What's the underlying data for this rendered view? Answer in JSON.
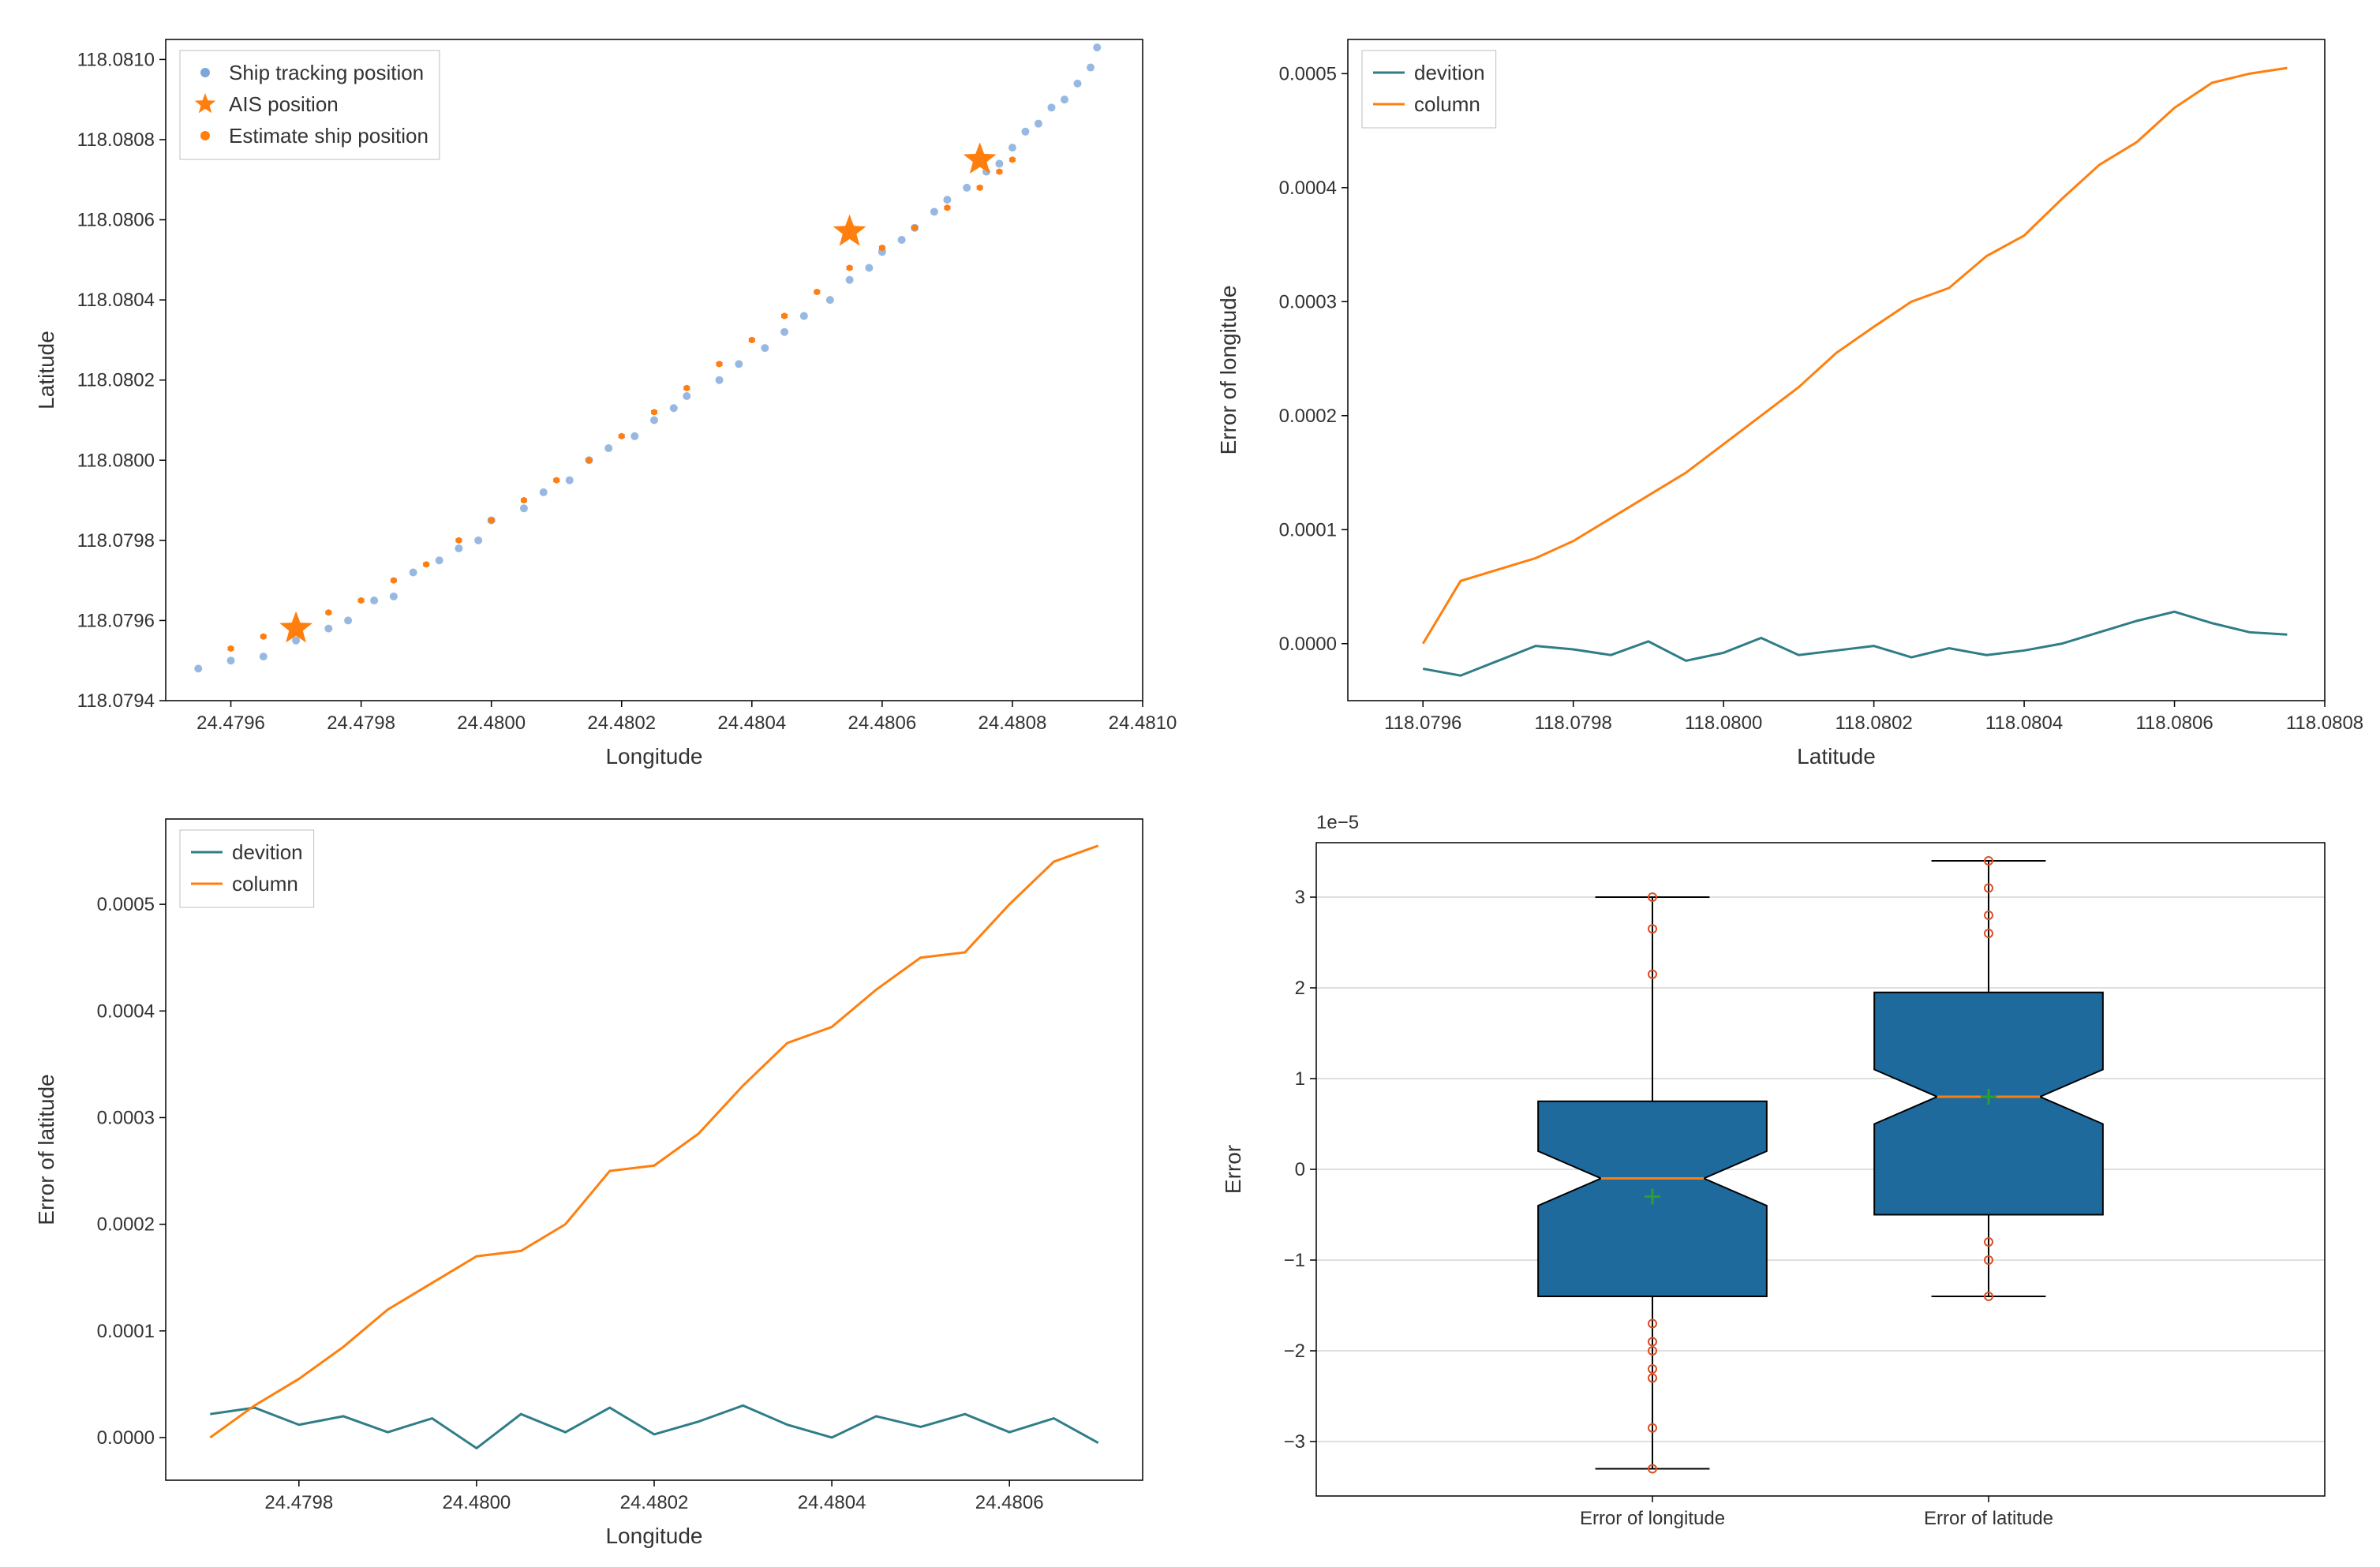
{
  "colors": {
    "bg": "#ffffff",
    "text": "#333333",
    "spine": "#000000",
    "grid": "#bfbfbf",
    "track_pt": "#7da7d9",
    "ais_star": "#ff7f0e",
    "est_pt": "#ff7f0e",
    "err_bar": "#d62728",
    "devition": "#2e7d87",
    "column": "#ff7f0e",
    "box_fill": "#1e6a9c",
    "box_median": "#ff7f0e",
    "box_mean": "#2ca02c",
    "box_flier": "#d94e24"
  },
  "font": {
    "family": "sans-serif",
    "label_size": 28,
    "tick_size": 24,
    "legend_size": 26
  },
  "panel_tl": {
    "type": "scatter",
    "xlabel": "Longitude",
    "ylabel": "Latitude",
    "xlim": [
      24.4795,
      24.481
    ],
    "ylim": [
      118.0794,
      118.08105
    ],
    "xticks": [
      24.4796,
      24.4798,
      24.48,
      24.4802,
      24.4804,
      24.4806,
      24.4808,
      24.481
    ],
    "yticks": [
      118.0794,
      118.0796,
      118.0798,
      118.08,
      118.0802,
      118.0804,
      118.0806,
      118.0808,
      118.081
    ],
    "legend": [
      {
        "marker": "dot",
        "color": "#7da7d9",
        "label": "Ship tracking position"
      },
      {
        "marker": "star",
        "color": "#ff7f0e",
        "label": "AIS position"
      },
      {
        "marker": "dot",
        "color": "#ff7f0e",
        "label": "Estimate ship position"
      }
    ],
    "track": [
      [
        24.47955,
        118.07948
      ],
      [
        24.4796,
        118.0795
      ],
      [
        24.47965,
        118.07951
      ],
      [
        24.4797,
        118.07955
      ],
      [
        24.47975,
        118.07958
      ],
      [
        24.47978,
        118.0796
      ],
      [
        24.47982,
        118.07965
      ],
      [
        24.47985,
        118.07966
      ],
      [
        24.47988,
        118.07972
      ],
      [
        24.47992,
        118.07975
      ],
      [
        24.47995,
        118.07978
      ],
      [
        24.47998,
        118.0798
      ],
      [
        24.48,
        118.07985
      ],
      [
        24.48005,
        118.07988
      ],
      [
        24.48008,
        118.07992
      ],
      [
        24.48012,
        118.07995
      ],
      [
        24.48015,
        118.08
      ],
      [
        24.48018,
        118.08003
      ],
      [
        24.48022,
        118.08006
      ],
      [
        24.48025,
        118.0801
      ],
      [
        24.48028,
        118.08013
      ],
      [
        24.4803,
        118.08016
      ],
      [
        24.48035,
        118.0802
      ],
      [
        24.48038,
        118.08024
      ],
      [
        24.48042,
        118.08028
      ],
      [
        24.48045,
        118.08032
      ],
      [
        24.48048,
        118.08036
      ],
      [
        24.48052,
        118.0804
      ],
      [
        24.48055,
        118.08045
      ],
      [
        24.48058,
        118.08048
      ],
      [
        24.4806,
        118.08052
      ],
      [
        24.48063,
        118.08055
      ],
      [
        24.48065,
        118.08058
      ],
      [
        24.48068,
        118.08062
      ],
      [
        24.4807,
        118.08065
      ],
      [
        24.48073,
        118.08068
      ],
      [
        24.48076,
        118.08072
      ],
      [
        24.48078,
        118.08074
      ],
      [
        24.4808,
        118.08078
      ],
      [
        24.48082,
        118.08082
      ],
      [
        24.48084,
        118.08084
      ],
      [
        24.48086,
        118.08088
      ],
      [
        24.48088,
        118.0809
      ],
      [
        24.4809,
        118.08094
      ],
      [
        24.48092,
        118.08098
      ],
      [
        24.48093,
        118.08103
      ]
    ],
    "est": [
      [
        24.4796,
        118.07953
      ],
      [
        24.47965,
        118.07956
      ],
      [
        24.4797,
        118.07958
      ],
      [
        24.47975,
        118.07962
      ],
      [
        24.4798,
        118.07965
      ],
      [
        24.47985,
        118.0797
      ],
      [
        24.4799,
        118.07974
      ],
      [
        24.47995,
        118.0798
      ],
      [
        24.48,
        118.07985
      ],
      [
        24.48005,
        118.0799
      ],
      [
        24.4801,
        118.07995
      ],
      [
        24.48015,
        118.08
      ],
      [
        24.4802,
        118.08006
      ],
      [
        24.48025,
        118.08012
      ],
      [
        24.4803,
        118.08018
      ],
      [
        24.48035,
        118.08024
      ],
      [
        24.4804,
        118.0803
      ],
      [
        24.48045,
        118.08036
      ],
      [
        24.4805,
        118.08042
      ],
      [
        24.48055,
        118.08048
      ],
      [
        24.4806,
        118.08053
      ],
      [
        24.48065,
        118.08058
      ],
      [
        24.4807,
        118.08063
      ],
      [
        24.48075,
        118.08068
      ],
      [
        24.48078,
        118.08072
      ],
      [
        24.4808,
        118.08075
      ]
    ],
    "ais": [
      [
        24.4797,
        118.07958
      ],
      [
        24.48055,
        118.08057
      ],
      [
        24.48075,
        118.08075
      ]
    ],
    "err_h": 3e-06,
    "marker": {
      "track_r": 5,
      "est_r": 4,
      "star_r": 22
    }
  },
  "panel_tr": {
    "type": "line",
    "xlabel": "Latitude",
    "ylabel": "Error of longitude",
    "xlim": [
      118.0795,
      118.0808
    ],
    "ylim": [
      -5e-05,
      0.00053
    ],
    "xticks": [
      118.0796,
      118.0798,
      118.08,
      118.0802,
      118.0804,
      118.0806,
      118.0808
    ],
    "yticks": [
      0.0,
      0.0001,
      0.0002,
      0.0003,
      0.0004,
      0.0005
    ],
    "legend": [
      {
        "marker": "line",
        "color": "#2e7d87",
        "label": "devition"
      },
      {
        "marker": "line",
        "color": "#ff7f0e",
        "label": "column"
      }
    ],
    "x": [
      118.0796,
      118.07965,
      118.0797,
      118.07975,
      118.0798,
      118.07985,
      118.0799,
      118.07995,
      118.08,
      118.08005,
      118.0801,
      118.08015,
      118.0802,
      118.08025,
      118.0803,
      118.08035,
      118.0804,
      118.08045,
      118.0805,
      118.08055,
      118.0806,
      118.08065,
      118.0807,
      118.08075
    ],
    "devition": [
      -2.2e-05,
      -2.8e-05,
      -1.5e-05,
      -2e-06,
      -5e-06,
      -1e-05,
      2e-06,
      -1.5e-05,
      -8e-06,
      5e-06,
      -1e-05,
      -6e-06,
      -2e-06,
      -1.2e-05,
      -4e-06,
      -1e-05,
      -6e-06,
      0.0,
      1e-05,
      2e-05,
      2.8e-05,
      1.8e-05,
      1e-05,
      8e-06
    ],
    "column": [
      0.0,
      5.5e-05,
      6.5e-05,
      7.5e-05,
      9e-05,
      0.00011,
      0.00013,
      0.00015,
      0.000175,
      0.0002,
      0.000225,
      0.000255,
      0.000278,
      0.0003,
      0.000312,
      0.00034,
      0.000358,
      0.00039,
      0.00042,
      0.00044,
      0.00047,
      0.000492,
      0.0005,
      0.000505
    ],
    "line_width": 3
  },
  "panel_bl": {
    "type": "line",
    "xlabel": "Longitude",
    "ylabel": "Error of latitude",
    "xlim": [
      24.47965,
      24.48075
    ],
    "ylim": [
      -4e-05,
      0.00058
    ],
    "xticks": [
      24.4798,
      24.48,
      24.4802,
      24.4804,
      24.4806
    ],
    "yticks": [
      0.0,
      0.0001,
      0.0002,
      0.0003,
      0.0004,
      0.0005
    ],
    "legend": [
      {
        "marker": "line",
        "color": "#2e7d87",
        "label": "devition"
      },
      {
        "marker": "line",
        "color": "#ff7f0e",
        "label": "column"
      }
    ],
    "x": [
      24.4797,
      24.47975,
      24.4798,
      24.47985,
      24.4799,
      24.47995,
      24.48,
      24.48005,
      24.4801,
      24.48015,
      24.4802,
      24.48025,
      24.4803,
      24.48035,
      24.4804,
      24.48045,
      24.4805,
      24.48055,
      24.4806,
      24.48065,
      24.4807
    ],
    "devition": [
      2.2e-05,
      2.8e-05,
      1.2e-05,
      2e-05,
      5e-06,
      1.8e-05,
      -1e-05,
      2.2e-05,
      5e-06,
      2.8e-05,
      3e-06,
      1.5e-05,
      3e-05,
      1.2e-05,
      0.0,
      2e-05,
      1e-05,
      2.2e-05,
      5e-06,
      1.8e-05,
      -5e-06
    ],
    "column": [
      0.0,
      3e-05,
      5.5e-05,
      8.5e-05,
      0.00012,
      0.000145,
      0.00017,
      0.000175,
      0.0002,
      0.00025,
      0.000255,
      0.000285,
      0.00033,
      0.00037,
      0.000385,
      0.00042,
      0.00045,
      0.000455,
      0.0005,
      0.00054,
      0.000555
    ],
    "line_width": 3
  },
  "panel_br": {
    "type": "boxplot",
    "title_above": "1e−5",
    "ylabel": "Error",
    "ylim": [
      -3.6,
      3.6
    ],
    "yticks": [
      -3,
      -2,
      -1,
      0,
      1,
      2,
      3
    ],
    "categories": [
      "Error of longitude",
      "Error of latitude"
    ],
    "boxes": [
      {
        "whisk_lo": -3.3,
        "q1": -1.4,
        "med": -0.1,
        "q3": 0.75,
        "whisk_hi": 3.0,
        "mean": -0.3,
        "notch_lo": -0.4,
        "notch_hi": 0.2,
        "outliers": [
          -3.3,
          -2.85,
          -2.3,
          -2.2,
          -2.0,
          -1.9,
          -1.7,
          2.15,
          2.65,
          3.0
        ]
      },
      {
        "whisk_lo": -1.4,
        "q1": -0.5,
        "med": 0.8,
        "q3": 1.95,
        "whisk_hi": 3.4,
        "mean": 0.8,
        "notch_lo": 0.5,
        "notch_hi": 1.1,
        "outliers": [
          -1.4,
          -1.0,
          -0.8,
          2.6,
          2.8,
          3.1,
          3.4
        ]
      }
    ],
    "box_width": 0.34,
    "notch_depth": 0.08,
    "grid": true
  }
}
